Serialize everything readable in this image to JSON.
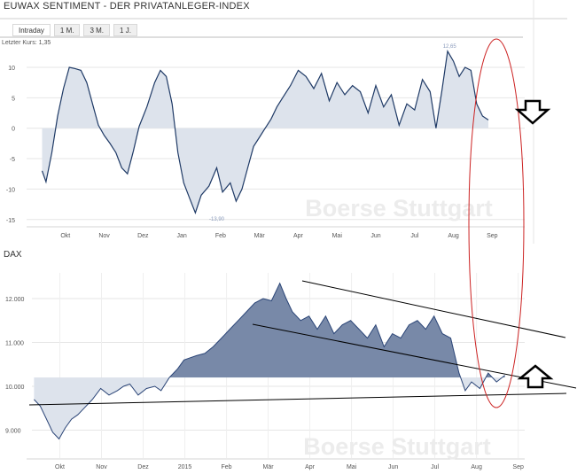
{
  "title": "EUWAX SENTIMENT - DER PRIVATANLEGER-INDEX",
  "tabs": [
    {
      "label": "Intraday",
      "active": true
    },
    {
      "label": "1 M.",
      "active": false
    },
    {
      "label": "3 M.",
      "active": false
    },
    {
      "label": "1 J.",
      "active": false
    }
  ],
  "colors": {
    "sentiment_line": "#1f3a66",
    "sentiment_fill": "#dde3ec",
    "dax_line": "#2b4577",
    "dax_fill_above": "#7889a8",
    "dax_fill_below": "#dde3ec",
    "ellipse": "#cc2222",
    "grid": "#e6e6e6"
  },
  "watermark": "Boerse Stuttgart",
  "chart_data": [
    {
      "type": "area",
      "last_value_label": "Letzter Kurs: 1,35",
      "ylim": [
        -15,
        13
      ],
      "y_ticks": [
        10,
        5,
        0,
        -5,
        -10,
        -15
      ],
      "x_ticks": [
        "Okt",
        "Nov",
        "Dez",
        "Jan",
        "Feb",
        "Mär",
        "Apr",
        "Mai",
        "Jun",
        "Jul",
        "Aug",
        "Sep"
      ],
      "annotations": [
        {
          "text": "12,65",
          "x": 10.5,
          "y": 12.65
        },
        {
          "text": "-13,90",
          "x": 4.5,
          "y": -13.9
        }
      ],
      "x": [
        0.0,
        0.1,
        0.25,
        0.4,
        0.55,
        0.7,
        0.85,
        1.0,
        1.15,
        1.3,
        1.45,
        1.6,
        1.75,
        1.9,
        2.05,
        2.2,
        2.35,
        2.5,
        2.7,
        2.9,
        3.05,
        3.2,
        3.35,
        3.5,
        3.65,
        3.8,
        3.95,
        4.1,
        4.3,
        4.5,
        4.65,
        4.85,
        5.0,
        5.15,
        5.3,
        5.45,
        5.6,
        5.75,
        5.9,
        6.05,
        6.2,
        6.4,
        6.6,
        6.8,
        7.0,
        7.2,
        7.4,
        7.6,
        7.8,
        8.0,
        8.2,
        8.4,
        8.6,
        8.8,
        9.0,
        9.2,
        9.4,
        9.6,
        9.8,
        10.0,
        10.15,
        10.3,
        10.45,
        10.6,
        10.75,
        10.9,
        11.05,
        11.2,
        11.35,
        11.5
      ],
      "values": [
        -7,
        -8.8,
        -4,
        2,
        6.5,
        10,
        9.8,
        9.5,
        7.5,
        4,
        0.5,
        -1.2,
        -2.5,
        -4,
        -6.5,
        -7.5,
        -3.8,
        0.3,
        3.5,
        7.5,
        9.5,
        8.5,
        4,
        -4,
        -9,
        -11.5,
        -13.9,
        -11,
        -9.5,
        -6.5,
        -10.5,
        -9,
        -12,
        -10,
        -6.5,
        -3,
        -1.5,
        0,
        1.5,
        3.5,
        5,
        7,
        9.5,
        8.5,
        6.5,
        9,
        4.5,
        7.5,
        5.5,
        7,
        6,
        2.5,
        7,
        3.5,
        5.5,
        0.5,
        4,
        3,
        8,
        6,
        0,
        6,
        12.65,
        11,
        8.5,
        10,
        9.5,
        4,
        2,
        1.35
      ]
    },
    {
      "type": "area",
      "title": "DAX",
      "ylim": [
        8500,
        12600
      ],
      "y_ticks": [
        "12.000",
        "11.000",
        "10.000",
        "9.000"
      ],
      "y_tick_values": [
        12000,
        11000,
        10000,
        9000
      ],
      "baseline": 10200,
      "x_ticks": [
        "Okt",
        "Nov",
        "Dez",
        "2015",
        "Feb",
        "Mär",
        "Apr",
        "Mai",
        "Jun",
        "Jul",
        "Aug",
        "Sep"
      ],
      "x": [
        0.0,
        0.15,
        0.3,
        0.45,
        0.6,
        0.75,
        0.9,
        1.05,
        1.2,
        1.4,
        1.6,
        1.8,
        2.0,
        2.15,
        2.3,
        2.5,
        2.7,
        2.9,
        3.05,
        3.25,
        3.45,
        3.6,
        3.75,
        3.9,
        4.1,
        4.3,
        4.5,
        4.7,
        4.9,
        5.1,
        5.3,
        5.5,
        5.7,
        5.9,
        6.05,
        6.2,
        6.4,
        6.6,
        6.8,
        7.0,
        7.2,
        7.4,
        7.6,
        7.8,
        8.0,
        8.2,
        8.4,
        8.6,
        8.8,
        9.0,
        9.2,
        9.4,
        9.6,
        9.8,
        10.0,
        10.2,
        10.35,
        10.5,
        10.7,
        10.9,
        11.1,
        11.3
      ],
      "values": [
        9700,
        9550,
        9250,
        8950,
        8800,
        9050,
        9250,
        9350,
        9500,
        9700,
        9950,
        9800,
        9900,
        10000,
        10050,
        9800,
        9950,
        10000,
        9900,
        10200,
        10400,
        10600,
        10650,
        10700,
        10750,
        10900,
        11100,
        11300,
        11500,
        11700,
        11900,
        12000,
        11950,
        12350,
        12000,
        11700,
        11500,
        11600,
        11300,
        11600,
        11200,
        11400,
        11500,
        11300,
        11100,
        11400,
        10900,
        11200,
        11100,
        11400,
        11500,
        11300,
        11600,
        11200,
        11100,
        10300,
        9900,
        10100,
        9950,
        10300,
        10100,
        10250
      ]
    }
  ]
}
